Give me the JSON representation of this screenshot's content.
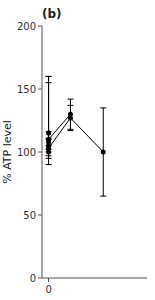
{
  "chart_data": {
    "type": "errorbar",
    "title": "(b)",
    "ylabel": "% ATP level",
    "xlim": [
      -0.3,
      4.5
    ],
    "ylim": [
      0,
      200
    ],
    "yticks": [
      0,
      50,
      100,
      150,
      200
    ],
    "xticks": [
      0
    ],
    "grid": false,
    "color": "#000000",
    "marker": "circle",
    "series": [
      {
        "x": [
          0,
          1.0,
          2.5
        ],
        "values": [
          103,
          127,
          100
        ],
        "error_lo": [
          8,
          10,
          35
        ],
        "error_hi": [
          8,
          10,
          35
        ],
        "line_style": "solid"
      },
      {
        "x": [
          0,
          1.0
        ],
        "values": [
          110,
          130
        ],
        "error_lo": [
          8,
          12
        ],
        "error_hi": [
          50,
          12
        ],
        "line_style": "solid"
      },
      {
        "x": [
          0
        ],
        "values": [
          105
        ],
        "error_lo": [
          8
        ],
        "error_hi": [
          55
        ],
        "line_style": "none"
      },
      {
        "x": [
          0
        ],
        "values": [
          115
        ],
        "error_lo": [
          10
        ],
        "error_hi": [
          40
        ],
        "line_style": "none"
      },
      {
        "x": [
          0
        ],
        "values": [
          108
        ],
        "error_lo": [
          8
        ],
        "error_hi": [
          8
        ],
        "line_style": "none"
      },
      {
        "x": [
          0
        ],
        "values": [
          100
        ],
        "error_lo": [
          10
        ],
        "error_hi": [
          10
        ],
        "line_style": "none"
      }
    ]
  }
}
